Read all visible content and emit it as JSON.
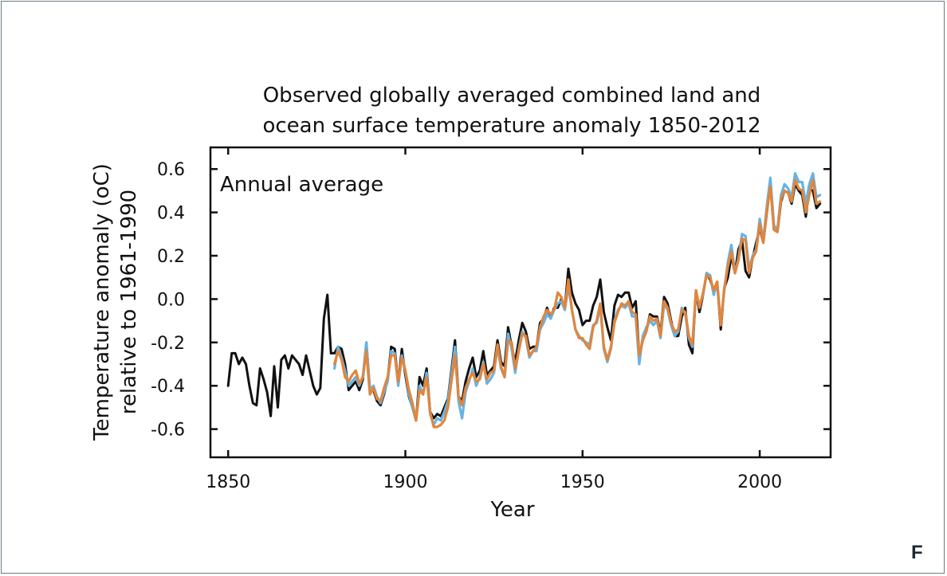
{
  "panel_letter": "F",
  "chart_data": {
    "type": "line",
    "title": "Observed globally averaged combined land and ocean surface temperature anomaly 1850-2012",
    "title_lines": [
      "Observed globally averaged combined land and",
      "ocean surface temperature anomaly 1850-2012"
    ],
    "annotation": "Annual average",
    "xlabel": "Year",
    "ylabel_lines": [
      "Temperature anomaly (oC)",
      "relative to 1961-1990"
    ],
    "xlim": [
      1845,
      2020
    ],
    "ylim": [
      -0.73,
      0.7
    ],
    "xticks": [
      1850,
      1900,
      1950,
      2000
    ],
    "yticks": [
      -0.6,
      -0.4,
      -0.2,
      0.0,
      0.2,
      0.4,
      0.6
    ],
    "ytick_labels": [
      "-0.6",
      "-0.4",
      "-0.2",
      "0.0",
      "0.2",
      "0.4",
      "0.6"
    ],
    "grid": false,
    "colors": {
      "black": "#111111",
      "blue": "#66b3e3",
      "orange": "#e2853c"
    },
    "series": [
      {
        "color": "black",
        "start": 1850,
        "values": [
          -0.4,
          -0.25,
          -0.25,
          -0.3,
          -0.27,
          -0.3,
          -0.4,
          -0.48,
          -0.49,
          -0.32,
          -0.37,
          -0.43,
          -0.54,
          -0.31,
          -0.5,
          -0.28,
          -0.26,
          -0.32,
          -0.26,
          -0.28,
          -0.3,
          -0.35,
          -0.26,
          -0.33,
          -0.4,
          -0.44,
          -0.41,
          -0.09,
          0.02,
          -0.25,
          -0.25,
          -0.22,
          -0.23,
          -0.3,
          -0.42,
          -0.4,
          -0.38,
          -0.42,
          -0.37,
          -0.2,
          -0.42,
          -0.42,
          -0.47,
          -0.49,
          -0.44,
          -0.37,
          -0.22,
          -0.23,
          -0.39,
          -0.23,
          -0.35,
          -0.45,
          -0.5,
          -0.56,
          -0.36,
          -0.4,
          -0.32,
          -0.52,
          -0.55,
          -0.53,
          -0.54,
          -0.5,
          -0.46,
          -0.33,
          -0.19,
          -0.45,
          -0.47,
          -0.38,
          -0.32,
          -0.27,
          -0.36,
          -0.33,
          -0.24,
          -0.35,
          -0.33,
          -0.31,
          -0.19,
          -0.29,
          -0.31,
          -0.13,
          -0.22,
          -0.29,
          -0.19,
          -0.11,
          -0.15,
          -0.23,
          -0.22,
          -0.22,
          -0.11,
          -0.09,
          -0.04,
          -0.09,
          -0.04,
          -0.04,
          0.0,
          -0.04,
          0.14,
          0.03,
          -0.02,
          -0.05,
          -0.12,
          -0.1,
          -0.1,
          -0.03,
          0.01,
          0.09,
          -0.06,
          -0.13,
          -0.19,
          -0.03,
          0.02,
          0.01,
          0.03,
          0.03,
          -0.04,
          -0.01,
          -0.26,
          -0.19,
          -0.15,
          -0.07,
          -0.08,
          -0.08,
          -0.16,
          0.01,
          -0.02,
          -0.1,
          -0.17,
          -0.17,
          -0.08,
          -0.04,
          -0.21,
          -0.25,
          0.04,
          -0.06,
          0.02,
          0.12,
          0.09,
          0.04,
          0.08,
          -0.14,
          0.05,
          0.1,
          0.2,
          0.12,
          0.23,
          0.27,
          0.13,
          0.1,
          0.19,
          0.26,
          0.33,
          0.26,
          0.4,
          0.53,
          0.32,
          0.31,
          0.45,
          0.5,
          0.49,
          0.44,
          0.53,
          0.5,
          0.48,
          0.38,
          0.51,
          0.5,
          0.42,
          0.44
        ]
      },
      {
        "color": "blue",
        "start": 1880,
        "values": [
          -0.32,
          -0.22,
          -0.27,
          -0.33,
          -0.4,
          -0.38,
          -0.36,
          -0.4,
          -0.36,
          -0.2,
          -0.42,
          -0.4,
          -0.45,
          -0.48,
          -0.43,
          -0.38,
          -0.24,
          -0.25,
          -0.4,
          -0.26,
          -0.33,
          -0.44,
          -0.5,
          -0.56,
          -0.4,
          -0.44,
          -0.34,
          -0.53,
          -0.58,
          -0.55,
          -0.56,
          -0.52,
          -0.47,
          -0.35,
          -0.22,
          -0.47,
          -0.55,
          -0.43,
          -0.38,
          -0.32,
          -0.4,
          -0.36,
          -0.29,
          -0.39,
          -0.37,
          -0.34,
          -0.22,
          -0.32,
          -0.36,
          -0.16,
          -0.23,
          -0.34,
          -0.23,
          -0.15,
          -0.18,
          -0.27,
          -0.24,
          -0.24,
          -0.14,
          -0.11,
          -0.07,
          -0.09,
          -0.05,
          -0.02,
          -0.01,
          -0.05,
          0.06,
          -0.05,
          -0.14,
          -0.17,
          -0.19,
          -0.2,
          -0.21,
          -0.12,
          -0.11,
          -0.03,
          -0.23,
          -0.29,
          -0.23,
          -0.1,
          -0.05,
          -0.03,
          -0.04,
          -0.02,
          -0.08,
          -0.08,
          -0.3,
          -0.17,
          -0.13,
          -0.1,
          -0.12,
          -0.1,
          -0.18,
          -0.02,
          -0.05,
          -0.12,
          -0.17,
          -0.15,
          -0.04,
          -0.07,
          -0.18,
          -0.22,
          0.03,
          -0.03,
          0.02,
          0.12,
          0.11,
          0.02,
          0.07,
          -0.11,
          0.04,
          0.17,
          0.25,
          0.12,
          0.19,
          0.3,
          0.29,
          0.14,
          0.2,
          0.23,
          0.37,
          0.27,
          0.43,
          0.56,
          0.34,
          0.32,
          0.48,
          0.53,
          0.51,
          0.47,
          0.58,
          0.54,
          0.54,
          0.44,
          0.53,
          0.58,
          0.47,
          0.48
        ]
      },
      {
        "color": "orange",
        "start": 1880,
        "values": [
          -0.3,
          -0.24,
          -0.28,
          -0.36,
          -0.38,
          -0.35,
          -0.33,
          -0.39,
          -0.36,
          -0.24,
          -0.44,
          -0.41,
          -0.46,
          -0.47,
          -0.41,
          -0.36,
          -0.26,
          -0.26,
          -0.38,
          -0.27,
          -0.33,
          -0.42,
          -0.48,
          -0.56,
          -0.42,
          -0.44,
          -0.36,
          -0.52,
          -0.59,
          -0.59,
          -0.58,
          -0.56,
          -0.5,
          -0.38,
          -0.26,
          -0.45,
          -0.49,
          -0.41,
          -0.37,
          -0.34,
          -0.38,
          -0.37,
          -0.3,
          -0.37,
          -0.34,
          -0.33,
          -0.21,
          -0.31,
          -0.36,
          -0.19,
          -0.2,
          -0.32,
          -0.24,
          -0.16,
          -0.17,
          -0.26,
          -0.24,
          -0.22,
          -0.13,
          -0.08,
          -0.05,
          -0.07,
          -0.05,
          0.03,
          0.01,
          -0.04,
          0.09,
          -0.05,
          -0.14,
          -0.18,
          -0.18,
          -0.21,
          -0.23,
          -0.13,
          -0.1,
          -0.02,
          -0.22,
          -0.28,
          -0.22,
          -0.11,
          -0.06,
          -0.02,
          -0.03,
          -0.01,
          -0.06,
          -0.07,
          -0.26,
          -0.19,
          -0.15,
          -0.08,
          -0.1,
          -0.09,
          -0.17,
          -0.01,
          -0.04,
          -0.11,
          -0.15,
          -0.14,
          -0.05,
          -0.06,
          -0.17,
          -0.21,
          0.04,
          -0.04,
          0.03,
          0.11,
          0.1,
          0.04,
          0.08,
          -0.12,
          0.05,
          0.15,
          0.22,
          0.12,
          0.18,
          0.28,
          0.27,
          0.12,
          0.19,
          0.22,
          0.35,
          0.26,
          0.41,
          0.52,
          0.32,
          0.31,
          0.46,
          0.5,
          0.49,
          0.45,
          0.55,
          0.51,
          0.5,
          0.4,
          0.48,
          0.55,
          0.44,
          0.45
        ]
      }
    ]
  }
}
